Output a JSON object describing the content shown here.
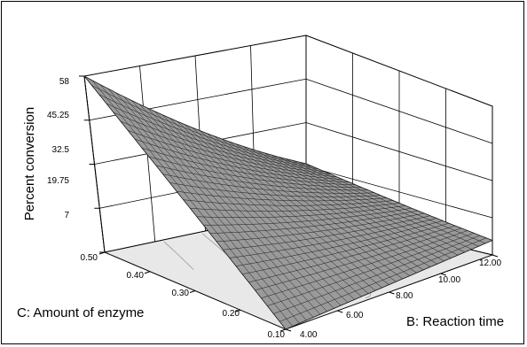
{
  "chart_data": {
    "type": "surface",
    "zlabel": "Percent conversion",
    "xlabel": "B: Reaction time",
    "ylabel": "C: Amount of enzyme",
    "zlim": [
      7,
      58
    ],
    "xlim": [
      4.0,
      12.0
    ],
    "ylim": [
      0.1,
      0.5
    ],
    "z_ticks": [
      "7",
      "19.75",
      "32.5",
      "45.25",
      "58"
    ],
    "x_ticks": [
      "4.00",
      "6.00",
      "8.00",
      "10.00",
      "12.00"
    ],
    "y_ticks": [
      "0.10",
      "0.20",
      "0.30",
      "0.40",
      "0.50"
    ],
    "grid": true,
    "corner_values": [
      {
        "x": 4.0,
        "y": 0.5,
        "z": 58
      },
      {
        "x": 12.0,
        "y": 0.5,
        "z": 20.5
      },
      {
        "x": 4.0,
        "y": 0.1,
        "z": 7
      },
      {
        "x": 12.0,
        "y": 0.1,
        "z": 12
      }
    ],
    "colors": {
      "surface_fill": "#9a9a9a",
      "surface_mesh": "#1a1a1a",
      "floor": "#e8e8e8",
      "contour": "#999999"
    }
  }
}
